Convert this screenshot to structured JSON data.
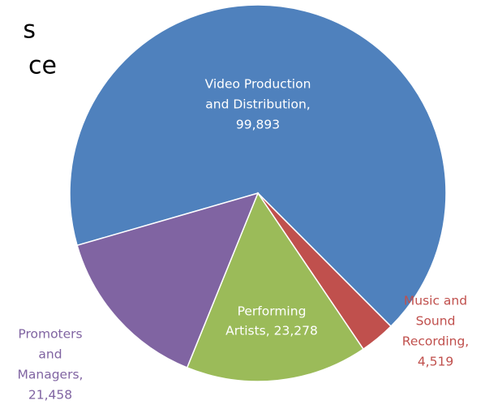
{
  "chart_data": {
    "type": "pie",
    "title": [
      "s",
      "ce"
    ],
    "values": [
      99893,
      4519,
      23278,
      21458
    ],
    "value_labels": [
      [
        "Video Production",
        "and Distribution,",
        "99,893"
      ],
      [
        "Music and",
        "Sound",
        "Recording,",
        "4,519"
      ],
      [
        "Performing",
        "Artists, 23,278"
      ],
      [
        "Promoters",
        "and",
        "Managers,",
        "21,458"
      ]
    ],
    "colors": [
      "#4f81bd",
      "#c0504d",
      "#9bbb59",
      "#8064a2"
    ]
  }
}
